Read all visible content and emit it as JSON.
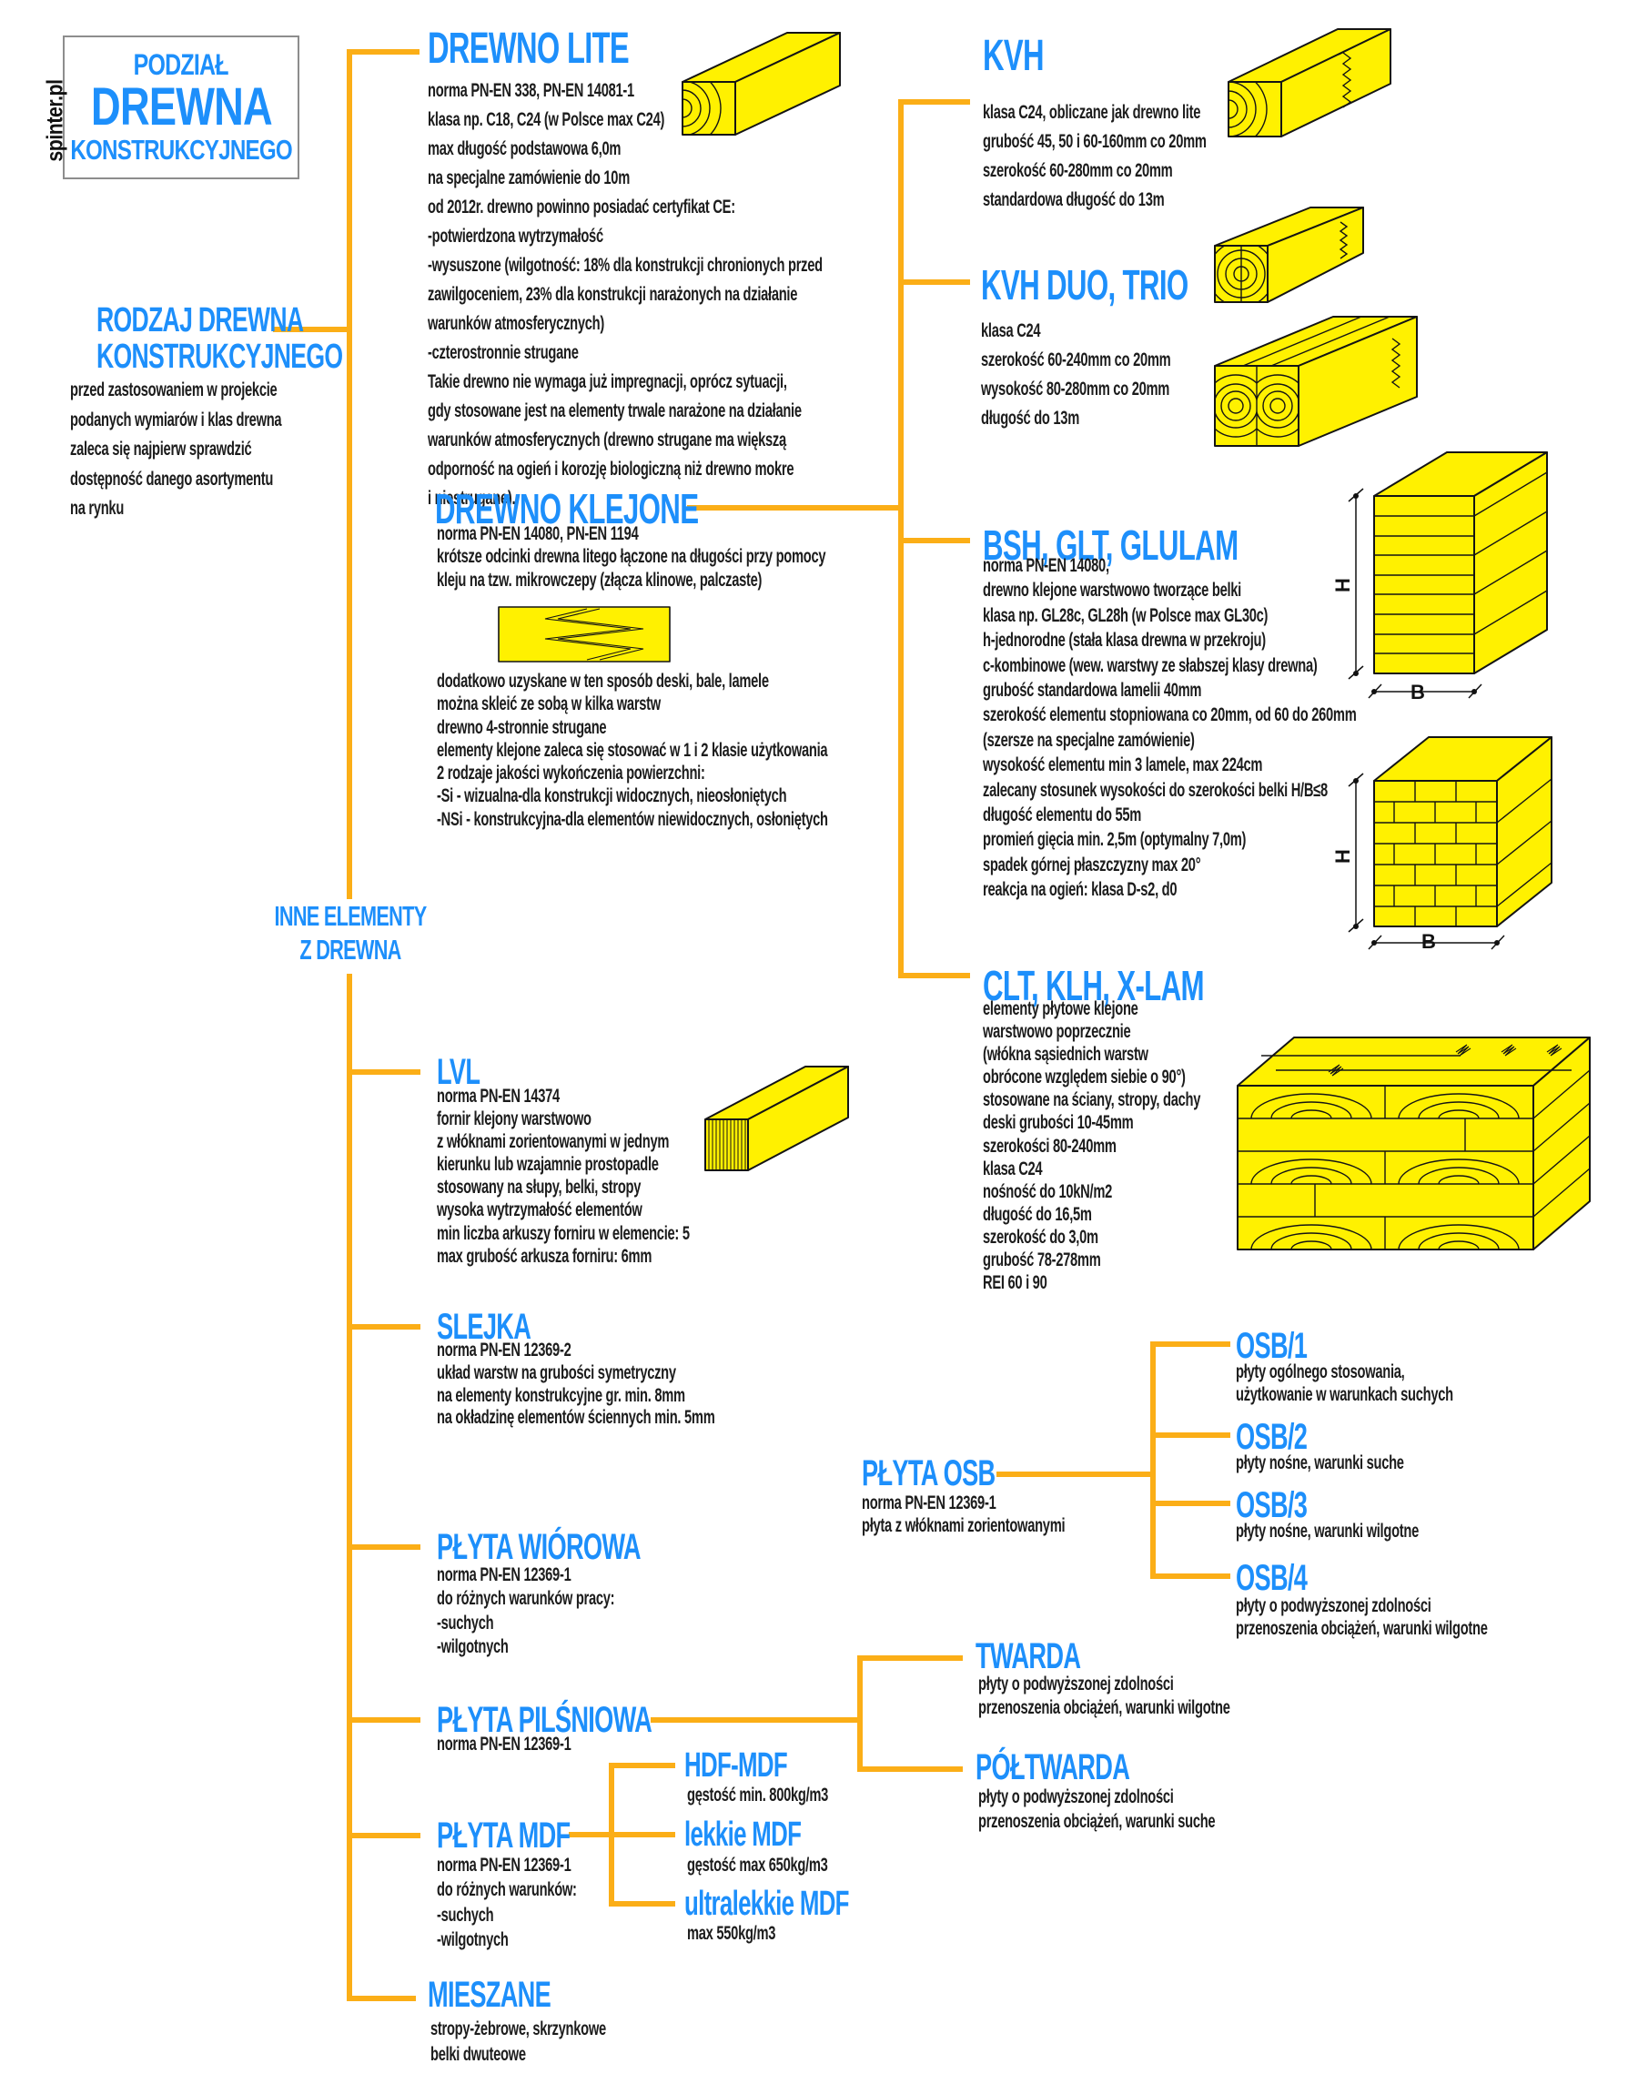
{
  "colors": {
    "accent_blue": "#1d8ffb",
    "connector_orange": "#fbae17",
    "wood_yellow": "#fff100",
    "outline_black": "#141414",
    "box_border_gray": "#8d8d8d",
    "text_black": "#1c1c1c"
  },
  "brand": "spinter.pl",
  "title_box": {
    "line1": "PODZIAŁ",
    "line2": "DREWNA",
    "line3": "KONSTRUKCYJNEGO"
  },
  "illustrations": {
    "drewno_lite": "solid-timber-beam",
    "kvh": "finger-jointed-beam",
    "kvh_duo": "duo-glued-beam",
    "kvh_trio": "trio-glued-beam",
    "klejone_joint": "finger-joint-board",
    "bsh_straight": "laminated-beam-section",
    "bsh_brick": "staggered-lamella-beam-section",
    "clt": "cross-laminated-panel",
    "lvl": "veneer-layered-beam"
  },
  "sections": {
    "rodzaj": {
      "title_lines": [
        "RODZAJ DREWNA",
        "KONSTRUKCYJNEGO"
      ],
      "lines": [
        "przed zastosowaniem w projekcie",
        "podanych wymiarów i klas drewna",
        "zaleca się najpierw sprawdzić",
        "dostępność danego asortymentu",
        "na rynku"
      ]
    },
    "inne": {
      "title_lines": [
        "INNE ELEMENTY",
        "Z DREWNA"
      ]
    },
    "drewno_lite": {
      "title": "DREWNO LITE",
      "lines": [
        "norma PN-EN 338, PN-EN 14081-1",
        "klasa np. C18, C24 (w Polsce max C24)",
        "max długość podstawowa 6,0m",
        "na specjalne zamówienie do 10m",
        "od 2012r. drewno powinno posiadać certyfikat CE:",
        "-potwierdzona wytrzymałość",
        "-wysuszone (wilgotność: 18% dla konstrukcji chronionych przed",
        "zawilgoceniem, 23% dla konstrukcji narażonych na działanie",
        "warunków atmosferycznych)",
        "-czterostronnie strugane",
        "Takie drewno nie wymaga już impregnacji, oprócz sytuacji,",
        "gdy stosowane jest na elementy trwale narażone na działanie",
        "warunków atmosferycznych (drewno strugane ma większą",
        "odporność na ogień i korozję biologiczną niż drewno mokre",
        "i niestrugane)."
      ]
    },
    "kvh": {
      "title": "KVH",
      "lines": [
        "klasa C24, obliczane jak drewno lite",
        "grubość 45, 50 i 60-160mm co 20mm",
        "szerokość 60-280mm co 20mm",
        "standardowa długość do 13m"
      ]
    },
    "kvh_duo": {
      "title": "KVH DUO, TRIO",
      "lines": [
        "klasa C24",
        "szerokość 60-240mm co 20mm",
        "wysokość 80-280mm co 20mm",
        "długość do 13m"
      ]
    },
    "drewno_klejone": {
      "title": "DREWNO KLEJONE",
      "lines1": [
        "norma PN-EN 14080, PN-EN 1194",
        "krótsze odcinki drewna litego łączone na długości przy pomocy",
        "kleju na tzw. mikrowczepy (złącza klinowe, palczaste)"
      ],
      "lines2": [
        "dodatkowo uzyskane w ten sposób deski, bale, lamele",
        "można skleić ze sobą w kilka warstw",
        "drewno 4-stronnie strugane",
        "elementy klejone zaleca się stosować w 1 i 2 klasie użytkowania",
        "2 rodzaje jakości wykończenia powierzchni:",
        "-Si - wizualna-dla konstrukcji widocznych, nieosłoniętych",
        "-NSi - konstrukcyjna-dla elementów niewidocznych, osłoniętych"
      ]
    },
    "bsh": {
      "title": "BSH, GLT, GLULAM",
      "dim_h": "H",
      "dim_b": "B",
      "lines": [
        "norma PN-EN 14080,",
        "drewno klejone warstwowo tworzące belki",
        "klasa np. GL28c, GL28h (w Polsce max GL30c)",
        "h-jednorodne (stała klasa drewna w przekroju)",
        "c-kombinowe (wew. warstwy ze słabszej klasy drewna)",
        "grubość standardowa lamelii 40mm",
        "szerokość elementu stopniowana co 20mm, od 60 do 260mm",
        "(szersze na specjalne zamówienie)",
        "wysokość elementu min 3 lamele, max 224cm",
        "zalecany stosunek wysokości do szerokości belki H/B≤8",
        "długość elementu do 55m",
        "promień gięcia min. 2,5m (optymalny 7,0m)",
        "spadek górnej płaszczyzny max 20°",
        "reakcja na ogień: klasa D-s2, d0"
      ]
    },
    "clt": {
      "title": "CLT, KLH, X-LAM",
      "lines": [
        "elementy płytowe klejone",
        "warstwowo poprzecznie",
        "(włókna sąsiednich warstw",
        "obrócone względem siebie o 90°)",
        "stosowane na ściany, stropy, dachy",
        "deski grubości 10-45mm",
        "szerokości 80-240mm",
        "klasa C24",
        "nośność do 10kN/m2",
        "długość do 16,5m",
        "szerokość do 3,0m",
        "grubość 78-278mm",
        "REI 60 i 90"
      ]
    },
    "lvl": {
      "title": "LVL",
      "lines": [
        "norma PN-EN 14374",
        "fornir klejony warstwowo",
        "z włóknami zorientowanymi w jednym",
        "kierunku lub wzajamnie prostopadle",
        "stosowany na słupy, belki, stropy",
        "wysoka wytrzymałość elementów",
        "min liczba arkuszy forniru w elemencie: 5",
        "max grubość arkusza forniru: 6mm"
      ]
    },
    "slejka": {
      "title": "SLEJKA",
      "lines": [
        "norma PN-EN 12369-2",
        "układ warstw na grubości symetryczny",
        "na elementy konstrukcyjne gr. min. 8mm",
        "na okładzinę elementów ściennych min. 5mm"
      ]
    },
    "plyta_osb": {
      "title": "PŁYTA OSB",
      "lines": [
        "norma PN-EN 12369-1",
        "płyta z włóknami zorientowanymi"
      ]
    },
    "osb1": {
      "title": "OSB/1",
      "lines": [
        "płyty ogólnego stosowania,",
        "użytkowanie w warunkach suchych"
      ]
    },
    "osb2": {
      "title": "OSB/2",
      "lines": [
        "płyty nośne, warunki suche"
      ]
    },
    "osb3": {
      "title": "OSB/3",
      "lines": [
        "płyty nośne, warunki wilgotne"
      ]
    },
    "osb4": {
      "title": "OSB/4",
      "lines": [
        "płyty o podwyższonej zdolności",
        "przenoszenia obciążeń, warunki wilgotne"
      ]
    },
    "plyta_wiorowa": {
      "title": "PŁYTA WIÓROWA",
      "lines": [
        "norma PN-EN 12369-1",
        "do różnych warunków pracy:",
        "-suchych",
        "-wilgotnych"
      ]
    },
    "plyta_pilsniowa": {
      "title": "PŁYTA PILŚNIOWA",
      "lines": [
        "norma PN-EN 12369-1"
      ]
    },
    "twarda": {
      "title": "TWARDA",
      "lines": [
        "płyty o podwyższonej zdolności",
        "przenoszenia obciążeń, warunki wilgotne"
      ]
    },
    "poltwarda": {
      "title": "PÓŁTWARDA",
      "lines": [
        "płyty o podwyższonej zdolności",
        "przenoszenia obciążeń, warunki suche"
      ]
    },
    "hdf_mdf": {
      "title": "HDF-MDF",
      "lines": [
        "gęstość  min. 800kg/m3"
      ]
    },
    "lekkie_mdf": {
      "title": "lekkie MDF",
      "lines": [
        "gęstość max 650kg/m3"
      ]
    },
    "ultralekkie_mdf": {
      "title": "ultralekkie MDF",
      "lines": [
        "max 550kg/m3"
      ]
    },
    "plyta_mdf": {
      "title": "PŁYTA MDF",
      "lines": [
        "norma PN-EN 12369-1",
        "do różnych warunków:",
        "-suchych",
        "-wilgotnych"
      ]
    },
    "mieszane": {
      "title": "MIESZANE",
      "lines": [
        "stropy-żebrowe, skrzynkowe",
        "belki dwuteowe"
      ]
    }
  }
}
